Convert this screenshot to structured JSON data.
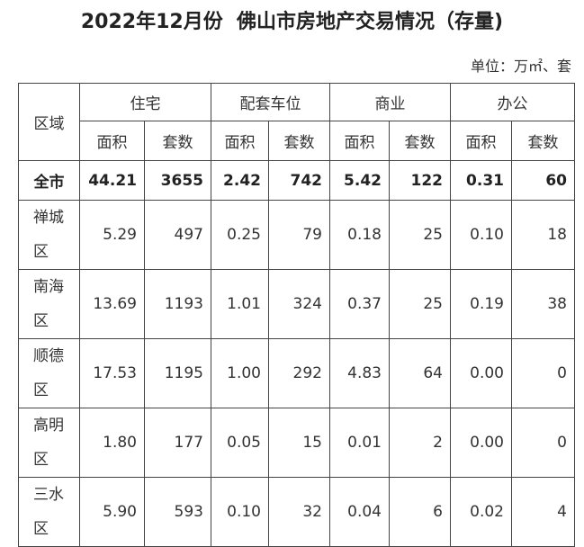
{
  "header": {
    "title": "2022年12月份  佛山市房地产交易情况（存量)",
    "unit": "单位：万㎡、套"
  },
  "table": {
    "region_header": "区域",
    "groups": [
      "住宅",
      "配套车位",
      "商业",
      "办公"
    ],
    "subheaders": [
      "面积",
      "套数",
      "面积",
      "套数",
      "面积",
      "套数",
      "面积",
      "套数"
    ],
    "rows": [
      [
        "全市",
        "44.21",
        "3655",
        "2.42",
        "742",
        "5.42",
        "122",
        "0.31",
        "60"
      ],
      [
        "禅城区",
        "5.29",
        "497",
        "0.25",
        "79",
        "0.18",
        "25",
        "0.10",
        "18"
      ],
      [
        "南海区",
        "13.69",
        "1193",
        "1.01",
        "324",
        "0.37",
        "25",
        "0.19",
        "38"
      ],
      [
        "顺德区",
        "17.53",
        "1195",
        "1.00",
        "292",
        "4.83",
        "64",
        "0.00",
        "0"
      ],
      [
        "高明区",
        "1.80",
        "177",
        "0.05",
        "15",
        "0.01",
        "2",
        "0.00",
        "0"
      ],
      [
        "三水区",
        "5.90",
        "593",
        "0.10",
        "32",
        "0.04",
        "6",
        "0.02",
        "4"
      ]
    ]
  }
}
